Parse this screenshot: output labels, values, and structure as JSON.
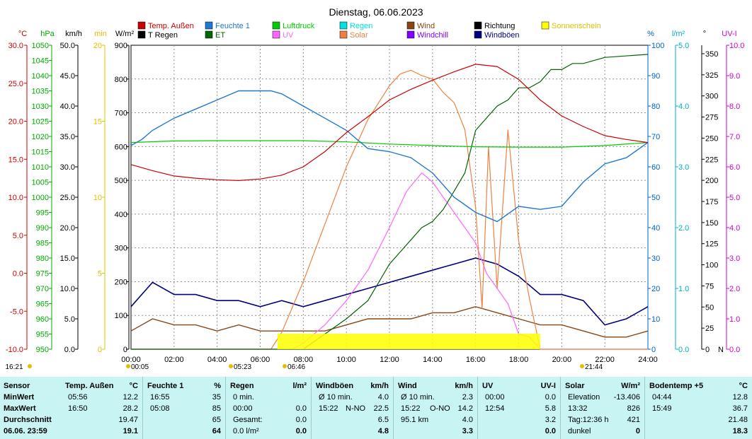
{
  "chart_data": {
    "type": "line",
    "title": "Dienstag, 06.06.2023",
    "x_ticks": [
      "00:00",
      "02:00",
      "04:00",
      "06:00",
      "08:00",
      "10:00",
      "12:00",
      "14:00",
      "16:00",
      "18:00",
      "20:00",
      "22:00",
      "24:00"
    ],
    "x_range_hours": [
      0,
      24
    ],
    "axes": {
      "temp": {
        "unit": "°C",
        "color": "#cc0000",
        "ticks": [
          "30.0",
          "25.0",
          "20.0",
          "15.0",
          "10.0",
          "5.0",
          "0.0",
          "-5.0",
          "-10.0"
        ]
      },
      "press": {
        "unit": "hPa",
        "color": "#00aa00",
        "ticks": [
          "1050",
          "1045",
          "1040",
          "1035",
          "1030",
          "1025",
          "1020",
          "1015",
          "1010",
          "1005",
          "1000",
          "995",
          "990",
          "985",
          "980",
          "975",
          "970",
          "965",
          "960",
          "955",
          "950"
        ]
      },
      "wind": {
        "unit": "km/h",
        "color": "#000000",
        "ticks": [
          "50.0",
          "45.0",
          "40.0",
          "35.0",
          "30.0",
          "25.0",
          "20.0",
          "15.0",
          "10.0",
          "5.0",
          "0.0"
        ]
      },
      "min": {
        "unit": "min",
        "color": "#e0c000",
        "ticks": [
          "20",
          "15",
          "10",
          "5",
          "0"
        ]
      },
      "solar": {
        "unit": "W/m²",
        "color": "#000000",
        "ticks": [
          "900",
          "800",
          "700",
          "600",
          "500",
          "400",
          "300",
          "200",
          "100",
          "0"
        ]
      },
      "humid": {
        "unit": "%",
        "color": "#0060c0",
        "ticks": [
          "100",
          "90",
          "80",
          "70",
          "60",
          "50",
          "40",
          "30",
          "20",
          "10",
          "0"
        ]
      },
      "rain": {
        "unit": "l/m²",
        "color": "#00b0c0",
        "ticks": [
          "5.0",
          "4.0",
          "3.0",
          "2.0",
          "1.0",
          "0.0"
        ]
      },
      "dir": {
        "unit": "°",
        "color": "#000000",
        "ticks": [
          "350",
          "325",
          "300",
          "275",
          "250",
          "225",
          "200",
          "175",
          "150",
          "125",
          "100",
          "75",
          "50",
          "25",
          "0"
        ],
        "n_label": "N"
      },
      "uv": {
        "unit": "UV-I",
        "color": "#cc00cc",
        "ticks": [
          "10.0",
          "9.0",
          "8.0",
          "7.0",
          "6.0",
          "5.0",
          "4.0",
          "3.0",
          "2.0",
          "1.0",
          "0.0"
        ]
      }
    },
    "legend": [
      {
        "label": "Temp. Außen",
        "color": "#cc0000"
      },
      {
        "label": "T Regen",
        "color": "#000000"
      },
      {
        "label": "Feuchte 1",
        "color": "#1e78d2"
      },
      {
        "label": "ET",
        "color": "#006400"
      },
      {
        "label": "Luftdruck",
        "color": "#00cc00"
      },
      {
        "label": "UV",
        "color": "#ff66ff"
      },
      {
        "label": "Regen",
        "color": "#00e0e0"
      },
      {
        "label": "Solar",
        "color": "#f08040"
      },
      {
        "label": "Wind",
        "color": "#8b4513"
      },
      {
        "label": "Windchill",
        "color": "#8000ff"
      },
      {
        "label": "Richtung",
        "color": "#000000"
      },
      {
        "label": "Windböen",
        "color": "#000080"
      },
      {
        "label": "Sonnenschein",
        "color": "#ffff00"
      }
    ],
    "series": [
      {
        "name": "Temp. Außen",
        "axis": "temp",
        "x": [
          0,
          1,
          2,
          3,
          4,
          5,
          6,
          7,
          8,
          9,
          10,
          11,
          12,
          13,
          14,
          15,
          16,
          17,
          18,
          19,
          20,
          21,
          22,
          23,
          24
        ],
        "values": [
          14.3,
          13.5,
          12.8,
          12.5,
          12.3,
          12.2,
          12.4,
          12.9,
          14.0,
          16.0,
          18.5,
          20.6,
          22.8,
          24.2,
          25.4,
          26.5,
          27.5,
          27.2,
          25.5,
          22.8,
          20.7,
          19.3,
          18.1,
          17.6,
          17.2
        ]
      },
      {
        "name": "Feuchte 1",
        "axis": "humid",
        "x": [
          0,
          0.5,
          1,
          2,
          3,
          4,
          5,
          6,
          6.5,
          7,
          8,
          9,
          10,
          11,
          12,
          13,
          14,
          15,
          16,
          17,
          18,
          19,
          20,
          21,
          22,
          23,
          24
        ],
        "values": [
          67,
          69,
          72,
          76,
          79,
          82,
          85,
          85,
          85,
          84,
          80,
          76,
          72,
          66,
          65,
          63,
          58,
          50,
          45,
          42,
          47,
          46,
          47,
          55,
          61,
          63,
          68
        ]
      },
      {
        "name": "Luftdruck",
        "axis": "press",
        "x": [
          0,
          2,
          4,
          6,
          8,
          10,
          12,
          14,
          16,
          18,
          20,
          22,
          24
        ],
        "values": [
          1018,
          1018.5,
          1018.6,
          1018.6,
          1018.6,
          1018.2,
          1017.5,
          1017,
          1016.6,
          1016.5,
          1016.5,
          1017,
          1018
        ]
      },
      {
        "name": "Solar",
        "axis": "solar",
        "x": [
          0,
          6.5,
          7,
          8,
          9,
          10,
          11,
          12,
          12.5,
          13,
          13.5,
          14,
          14.5,
          15,
          15.5,
          16,
          16.3,
          16.6,
          17,
          17.5,
          18,
          18.5,
          19,
          19.5,
          24
        ],
        "values": [
          0,
          0,
          50,
          200,
          370,
          540,
          680,
          780,
          815,
          826,
          810,
          800,
          760,
          730,
          650,
          420,
          120,
          600,
          180,
          650,
          320,
          150,
          0,
          0,
          0
        ]
      },
      {
        "name": "UV",
        "axis": "uv",
        "x": [
          0,
          7.5,
          8,
          9,
          10,
          11,
          12,
          12.8,
          13.5,
          14,
          14.5,
          15,
          15.5,
          16,
          16.5,
          17,
          17.5,
          18,
          18.5,
          19,
          24
        ],
        "values": [
          0,
          0,
          0.2,
          0.8,
          1.6,
          2.6,
          4.0,
          5.2,
          5.8,
          5.5,
          5.0,
          4.5,
          4.0,
          3.5,
          2.5,
          2.0,
          1.5,
          0.5,
          0.4,
          0,
          0
        ]
      },
      {
        "name": "ET",
        "axis": "rain",
        "x": [
          0,
          6,
          8,
          10,
          11,
          11.5,
          12,
          12.5,
          13,
          13.5,
          14,
          14.5,
          15,
          15.5,
          16,
          17,
          17.5,
          18,
          18.5,
          19,
          19.5,
          20,
          20.5,
          21,
          22,
          24
        ],
        "values": [
          0,
          0,
          0,
          0.5,
          0.8,
          1.1,
          1.4,
          1.6,
          1.8,
          2.0,
          2.1,
          2.3,
          2.6,
          2.9,
          3.6,
          4.0,
          4.1,
          4.3,
          4.3,
          4.4,
          4.6,
          4.6,
          4.7,
          4.7,
          4.8,
          4.85
        ]
      },
      {
        "name": "Wind",
        "axis": "wind",
        "x": [
          0,
          1,
          2,
          3,
          4,
          5,
          6,
          7,
          8,
          9,
          10,
          11,
          12,
          13,
          14,
          15,
          16,
          17,
          18,
          19,
          20,
          21,
          22,
          23,
          24
        ],
        "values": [
          3,
          5,
          4,
          4,
          3,
          4,
          3,
          3,
          3,
          3,
          4,
          5,
          5,
          5,
          6,
          6,
          7,
          6,
          5,
          4,
          4,
          3,
          2,
          2,
          3
        ]
      },
      {
        "name": "Windböen",
        "axis": "wind",
        "x": [
          0,
          1,
          2,
          3,
          4,
          5,
          6,
          7,
          8,
          9,
          10,
          11,
          12,
          13,
          14,
          15,
          16,
          17,
          18,
          19,
          20,
          21,
          22,
          23,
          24
        ],
        "values": [
          7,
          11,
          9,
          9,
          8,
          8,
          7,
          8,
          7,
          8,
          9,
          10,
          11,
          12,
          13,
          14,
          15,
          14,
          12,
          9,
          9,
          8,
          4,
          5,
          7
        ]
      }
    ],
    "time_markers": [
      {
        "label": "00:05",
        "color": "#e0c000"
      },
      {
        "label": "05:23",
        "color": "#e0c000"
      },
      {
        "label": "06:46",
        "color": "#e0c000"
      },
      {
        "label": "21:44",
        "color": "#e0c000"
      },
      {
        "label": "16:21",
        "color": "#e0c000"
      }
    ]
  },
  "summary": {
    "row_labels": [
      "Sensor",
      "MinWert",
      "MaxWert",
      "Durchschnitt",
      "06.06. 23:59"
    ],
    "columns": [
      {
        "title": "Temp. Außen",
        "unit": "°C",
        "rows": [
          [
            "05:56",
            "",
            "12.2"
          ],
          [
            "16:50",
            "",
            "28.2"
          ],
          [
            "",
            "",
            "19.47"
          ],
          [
            "",
            "",
            "19.1"
          ]
        ]
      },
      {
        "title": "Feuchte 1",
        "unit": "%",
        "rows": [
          [
            "16:55",
            "",
            "35"
          ],
          [
            "05:08",
            "",
            "85"
          ],
          [
            "",
            "",
            "65"
          ],
          [
            "",
            "",
            "64"
          ]
        ]
      },
      {
        "title": "Regen",
        "unit": "l/m²",
        "rows": [
          [
            "0 min.",
            "",
            ""
          ],
          [
            "00:00",
            "",
            "0.0"
          ],
          [
            "Gesamt:",
            "",
            "0.0"
          ],
          [
            "0.0 l/m²",
            "",
            "0.0"
          ]
        ]
      },
      {
        "title": "Windböen",
        "unit": "km/h",
        "rows": [
          [
            "Ø 10 min.",
            "",
            "4.0"
          ],
          [
            "15:22",
            "N-NO",
            "22.5"
          ],
          [
            "",
            "",
            "6.5"
          ],
          [
            "",
            "",
            "4.8"
          ]
        ]
      },
      {
        "title": "Wind",
        "unit": "km/h",
        "rows": [
          [
            "Ø 10 min.",
            "",
            "2.3"
          ],
          [
            "15:22",
            "O-NO",
            "14.2"
          ],
          [
            "95.1 km",
            "",
            "4.0"
          ],
          [
            "",
            "",
            "3.3"
          ]
        ]
      },
      {
        "title": "UV",
        "unit": "UV-I",
        "rows": [
          [
            "00:00",
            "",
            "0.0"
          ],
          [
            "12:54",
            "",
            "5.8"
          ],
          [
            "",
            "",
            "3.2"
          ],
          [
            "",
            "",
            "0.0"
          ]
        ]
      },
      {
        "title": "Solar",
        "unit": "W/m²",
        "rows": [
          [
            "Elevation",
            "",
            "-13.406"
          ],
          [
            "13:32",
            "",
            "826"
          ],
          [
            "Tag:12:36 h",
            "",
            "421"
          ],
          [
            "dunkel",
            "",
            "0"
          ]
        ]
      },
      {
        "title": "Bodentemp +5",
        "unit": "°C",
        "rows": [
          [
            "04:44",
            "",
            "12.8"
          ],
          [
            "15:49",
            "",
            "36.7"
          ],
          [
            "",
            "",
            "21.48"
          ],
          [
            "",
            "",
            "18.3"
          ]
        ]
      }
    ]
  }
}
